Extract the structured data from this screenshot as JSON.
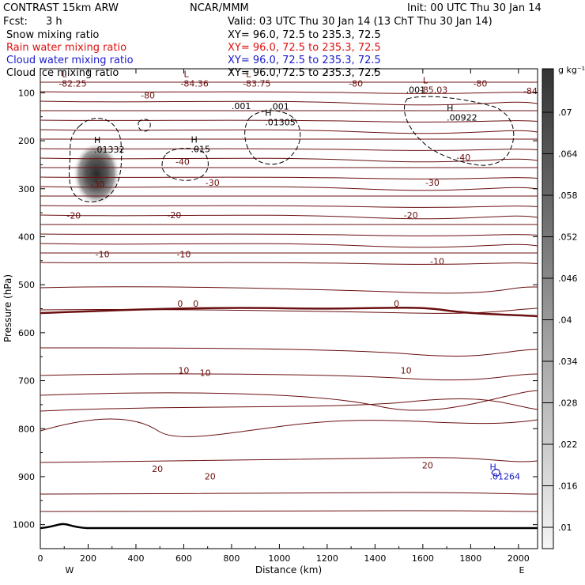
{
  "header": {
    "title": "CONTRAST 15km ARW",
    "org": "NCAR/MMM",
    "init": "Init: 00 UTC Thu 30 Jan 14",
    "fcst_label": "Fcst:",
    "fcst_value": "3 h",
    "valid": "Valid: 03 UTC Thu 30 Jan 14 (13 ChT Thu 30 Jan 14)",
    "legend": [
      {
        "label": "Snow mixing ratio",
        "xy": "XY=   96.0, 72.5 to 235.3, 72.5",
        "color": "#000000"
      },
      {
        "label": "Rain water mixing ratio",
        "xy": "XY=   96.0, 72.5 to 235.3, 72.5",
        "color": "#dd1111"
      },
      {
        "label": "Cloud water mixing ratio",
        "xy": "XY=   96.0, 72.5 to 235.3, 72.5",
        "color": "#1a1acc"
      },
      {
        "label": "Cloud ice mixing ratio",
        "xy": "XY=   96.0, 72.5 to 235.3, 72.5",
        "color": "#000000"
      }
    ]
  },
  "chart_data": {
    "type": "contour cross-section",
    "xlabel": "Distance (km)",
    "ylabel": "Pressure (hPa)",
    "x_ticks": [
      "0",
      "200",
      "400",
      "600",
      "800",
      "1000",
      "1200",
      "1400",
      "1600",
      "1800",
      "2000"
    ],
    "x_tick_values": [
      0,
      200,
      400,
      600,
      800,
      1000,
      1200,
      1400,
      1600,
      1800,
      2000
    ],
    "y_ticks": [
      "100",
      "200",
      "300",
      "400",
      "500",
      "600",
      "700",
      "800",
      "900",
      "1000"
    ],
    "y_tick_values": [
      100,
      200,
      300,
      400,
      500,
      600,
      700,
      800,
      900,
      1000
    ],
    "xlim": [
      0,
      2080
    ],
    "ylim": [
      1050,
      50
    ],
    "west_label": "W",
    "east_label": "E",
    "colorbar": {
      "units": "g kg⁻¹",
      "labels": [
        ".07",
        ".064",
        ".058",
        ".052",
        ".046",
        ".04",
        ".034",
        ".028",
        ".022",
        ".016",
        ".01"
      ]
    },
    "temperature_labels": [
      {
        "text": "-80",
        "x": 450,
        "p": 112
      },
      {
        "text": "-80",
        "x": 1320,
        "p": 87
      },
      {
        "text": "-80",
        "x": 1840,
        "p": 87
      },
      {
        "text": "-84",
        "x": 2050,
        "p": 103
      },
      {
        "text": "-40",
        "x": 595,
        "p": 250
      },
      {
        "text": "-40",
        "x": 1770,
        "p": 241
      },
      {
        "text": "-30",
        "x": 240,
        "p": 297
      },
      {
        "text": "-30",
        "x": 720,
        "p": 294
      },
      {
        "text": "-30",
        "x": 1640,
        "p": 294
      },
      {
        "text": "-20",
        "x": 140,
        "p": 362
      },
      {
        "text": "-20",
        "x": 560,
        "p": 361
      },
      {
        "text": "-20",
        "x": 1550,
        "p": 361
      },
      {
        "text": "-10",
        "x": 260,
        "p": 443
      },
      {
        "text": "-10",
        "x": 600,
        "p": 443
      },
      {
        "text": "-10",
        "x": 1660,
        "p": 458
      },
      {
        "text": "0",
        "x": 585,
        "p": 546
      },
      {
        "text": "0",
        "x": 650,
        "p": 546
      },
      {
        "text": "0",
        "x": 1490,
        "p": 546
      },
      {
        "text": "10",
        "x": 600,
        "p": 685
      },
      {
        "text": "10",
        "x": 690,
        "p": 690
      },
      {
        "text": "10",
        "x": 1530,
        "p": 685
      },
      {
        "text": "20",
        "x": 490,
        "p": 890
      },
      {
        "text": "20",
        "x": 710,
        "p": 906
      },
      {
        "text": "20",
        "x": 1620,
        "p": 883
      }
    ],
    "extrema": [
      {
        "sym": "L",
        "value": "-82.25",
        "x": 90,
        "p": 87
      },
      {
        "sym": "L",
        "value": "-84.36",
        "x": 600,
        "p": 87
      },
      {
        "sym": "L",
        "value": "-83.75",
        "x": 860,
        "p": 87
      },
      {
        "sym": "L",
        "value": "-85.03",
        "x": 1600,
        "p": 100
      },
      {
        "sym": "H",
        "value": ".01332",
        "x": 225,
        "p": 225
      },
      {
        "sym": "H",
        "value": ".015",
        "x": 630,
        "p": 224
      },
      {
        "sym": "H",
        "value": ".01305",
        "x": 940,
        "p": 168
      },
      {
        "sym": "H",
        "value": ".00922",
        "x": 1700,
        "p": 158
      },
      {
        "sym": "H",
        "value": ".01264",
        "x": 1880,
        "p": 906
      }
    ],
    "region_labels": [
      {
        "text": ".001",
        "x": 800,
        "p": 134
      },
      {
        "text": ".001",
        "x": 960,
        "p": 135
      },
      {
        "text": ".001",
        "x": 1530,
        "p": 100
      }
    ]
  }
}
